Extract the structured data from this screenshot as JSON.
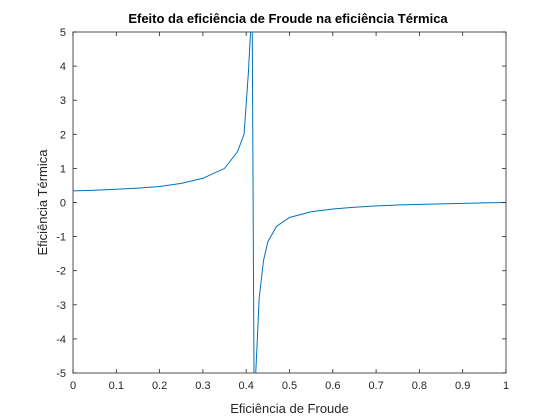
{
  "chart_data": {
    "type": "line",
    "title": "Efeito da eficiência de Froude na eficiência Térmica",
    "xlabel": "Eficiência de Froude",
    "ylabel": "Eficiência Térmica",
    "xlim": [
      0,
      1
    ],
    "ylim": [
      -5,
      5
    ],
    "grid": false,
    "x_ticks": [
      0,
      0.1,
      0.2,
      0.3,
      0.4,
      0.5,
      0.6,
      0.7,
      0.8,
      0.9,
      1
    ],
    "x_tick_labels": [
      "0",
      "0.1",
      "0.2",
      "0.3",
      "0.4",
      "0.5",
      "0.6",
      "0.7",
      "0.8",
      "0.9",
      "1"
    ],
    "y_ticks": [
      -5,
      -4,
      -3,
      -2,
      -1,
      0,
      1,
      2,
      3,
      4,
      5
    ],
    "y_tick_labels": [
      "-5",
      "-4",
      "-3",
      "-2",
      "-1",
      "0",
      "1",
      "2",
      "3",
      "4",
      "5"
    ],
    "series": [
      {
        "color": "#0072BD",
        "x": [
          0,
          0.05,
          0.1,
          0.15,
          0.2,
          0.25,
          0.3,
          0.35,
          0.38,
          0.395,
          0.405,
          0.41,
          0.414,
          0.418,
          0.422,
          0.425,
          0.43,
          0.44,
          0.45,
          0.47,
          0.5,
          0.55,
          0.6,
          0.65,
          0.7,
          0.75,
          0.8,
          0.85,
          0.9,
          0.95,
          1.0
        ],
        "y": [
          0.34,
          0.36,
          0.39,
          0.42,
          0.47,
          0.56,
          0.71,
          1.0,
          1.49,
          2.0,
          3.8,
          5.0,
          5.0,
          -5.0,
          -5.0,
          -4.2,
          -2.8,
          -1.7,
          -1.15,
          -0.7,
          -0.44,
          -0.27,
          -0.19,
          -0.14,
          -0.1,
          -0.075,
          -0.055,
          -0.04,
          -0.025,
          -0.012,
          0.0
        ]
      }
    ]
  }
}
